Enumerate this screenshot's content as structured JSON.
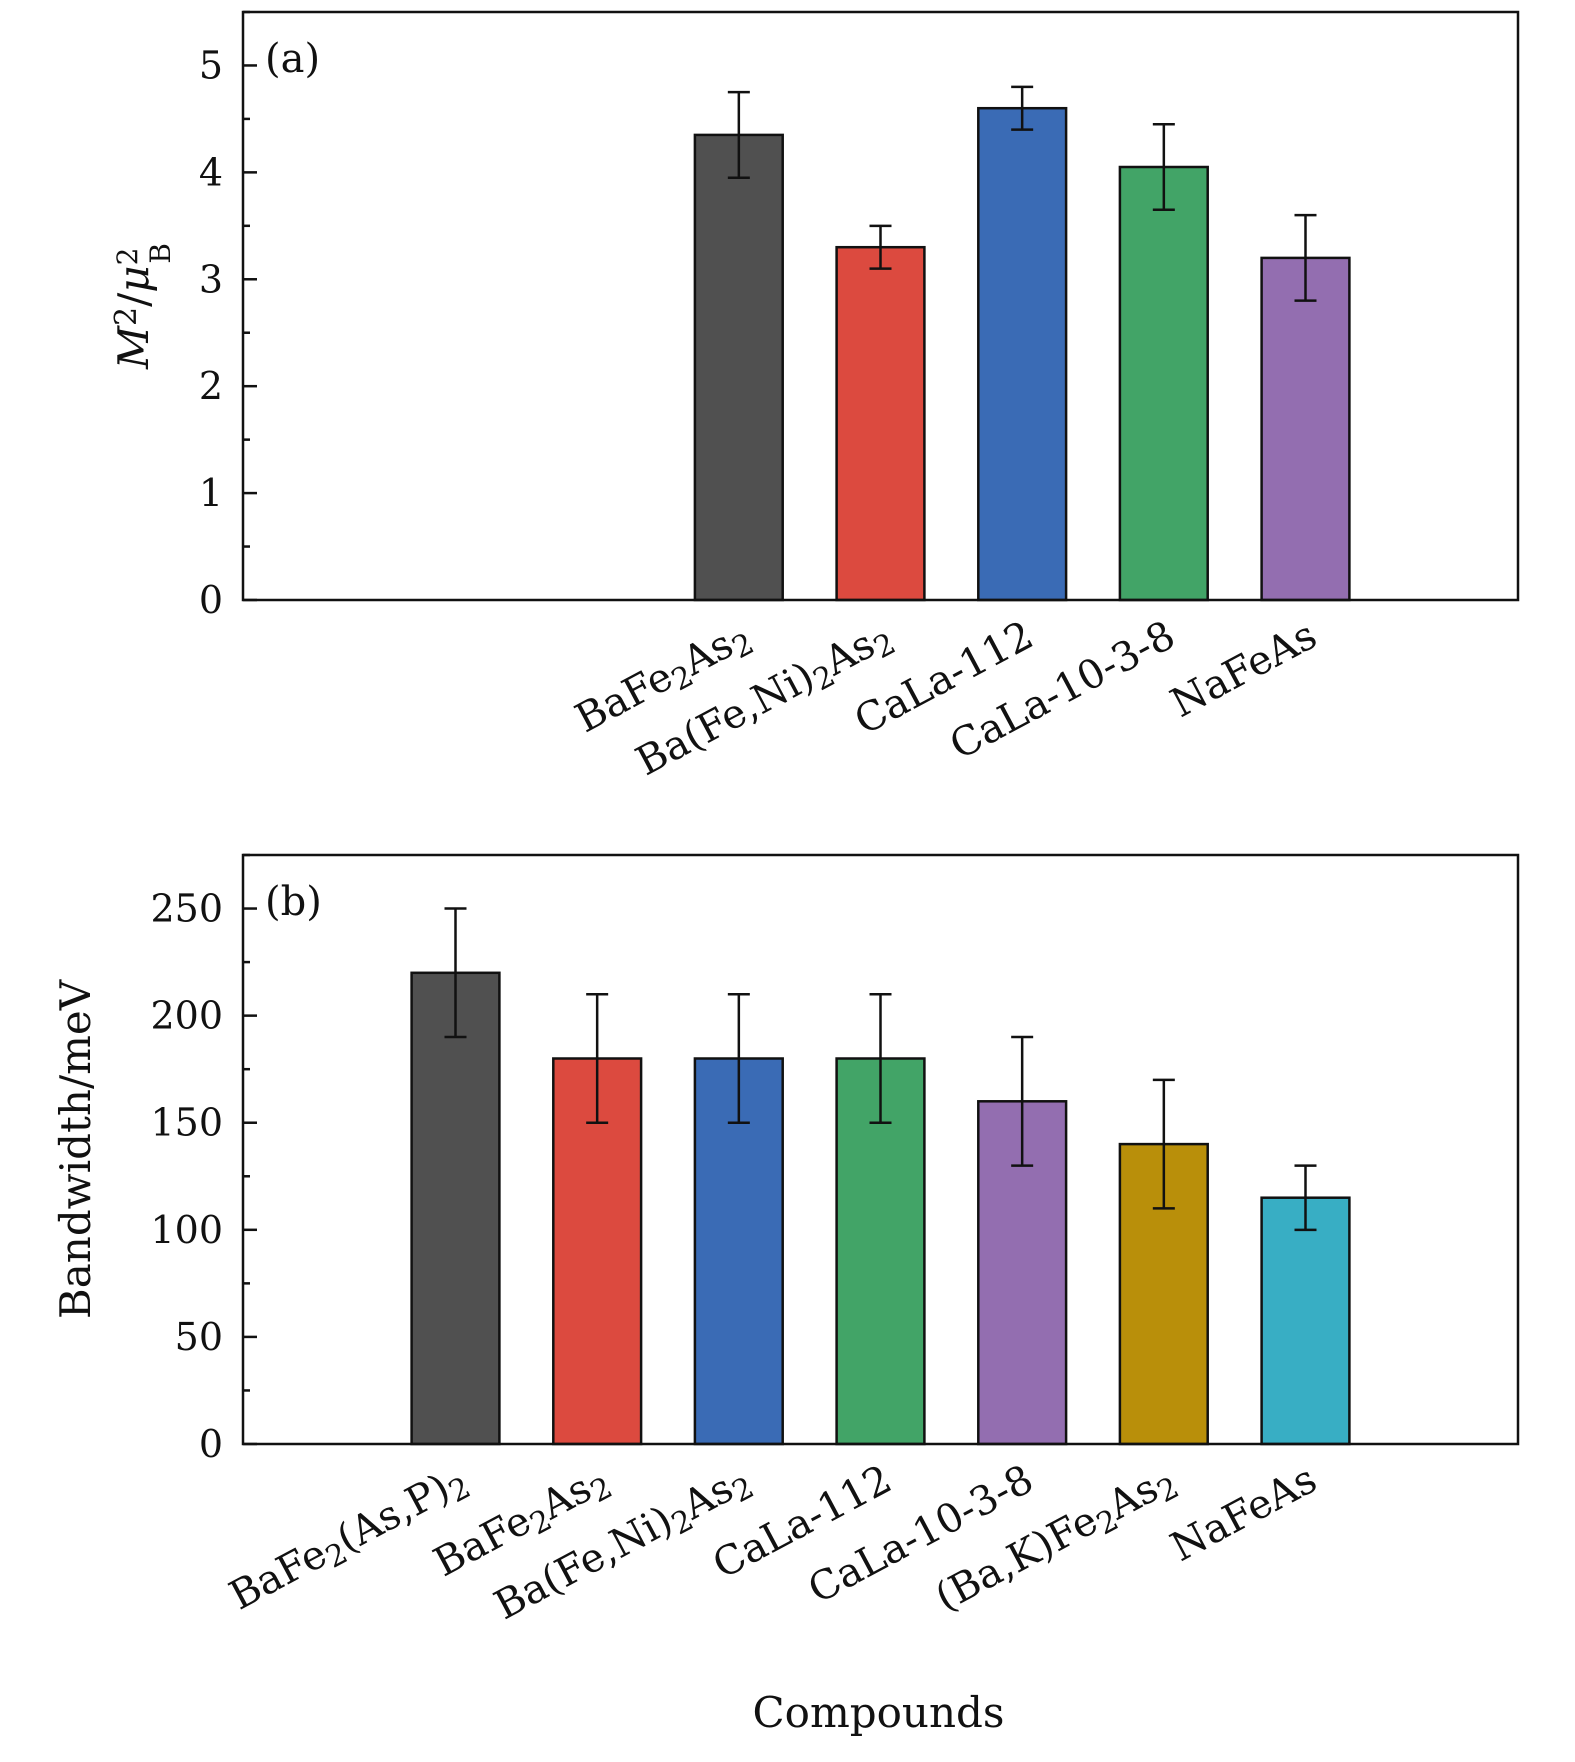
{
  "chart_data": [
    {
      "type": "bar",
      "panel_label": "(a)",
      "ylabel": {
        "base": "M",
        "sup": "2",
        "slash": "/",
        "mu": "μ",
        "mu_sup": "2",
        "mu_sub": "B"
      },
      "xlabel": "",
      "ylim": [
        0,
        5.5
      ],
      "yticks": [
        0,
        1,
        2,
        3,
        4,
        5
      ],
      "categories": [
        {
          "id": "a-bafe2as2",
          "parts": [
            [
              "BaFe",
              ""
            ],
            [
              "2",
              "sub"
            ],
            [
              "As",
              ""
            ],
            [
              "2",
              "sub"
            ]
          ]
        },
        {
          "id": "a-bafeni2as2",
          "parts": [
            [
              "Ba(Fe,Ni)",
              ""
            ],
            [
              "2",
              "sub"
            ],
            [
              "As",
              ""
            ],
            [
              "2",
              "sub"
            ]
          ]
        },
        {
          "id": "a-cala112",
          "parts": [
            [
              "CaLa-112",
              ""
            ]
          ]
        },
        {
          "id": "a-cala1038",
          "parts": [
            [
              "CaLa-10-3-8",
              ""
            ]
          ]
        },
        {
          "id": "a-nafeas",
          "parts": [
            [
              "NaFeAs",
              ""
            ]
          ]
        }
      ],
      "values": [
        4.35,
        3.3,
        4.6,
        4.05,
        3.2
      ],
      "errors": [
        0.4,
        0.2,
        0.2,
        0.4,
        0.4
      ],
      "colors": [
        "#505050",
        "#dc4a3f",
        "#3a6bb5",
        "#42a467",
        "#936eb0"
      ]
    },
    {
      "type": "bar",
      "panel_label": "(b)",
      "ylabel": "Bandwidth/meV",
      "xlabel": "Compounds",
      "ylim": [
        0,
        275
      ],
      "yticks": [
        0,
        50,
        100,
        150,
        200,
        250
      ],
      "categories": [
        {
          "id": "b-bafe2asp2",
          "parts": [
            [
              "BaFe",
              ""
            ],
            [
              "2",
              "sub"
            ],
            [
              "(As,P)",
              ""
            ],
            [
              "2",
              "sub"
            ]
          ]
        },
        {
          "id": "b-bafe2as2",
          "parts": [
            [
              "BaFe",
              ""
            ],
            [
              "2",
              "sub"
            ],
            [
              "As",
              ""
            ],
            [
              "2",
              "sub"
            ]
          ]
        },
        {
          "id": "b-bafeni2as2",
          "parts": [
            [
              "Ba(Fe,Ni)",
              ""
            ],
            [
              "2",
              "sub"
            ],
            [
              "As",
              ""
            ],
            [
              "2",
              "sub"
            ]
          ]
        },
        {
          "id": "b-cala112",
          "parts": [
            [
              "CaLa-112",
              ""
            ]
          ]
        },
        {
          "id": "b-cala1038",
          "parts": [
            [
              "CaLa-10-3-8",
              ""
            ]
          ]
        },
        {
          "id": "b-bakfe2as2",
          "parts": [
            [
              "(Ba,K)Fe",
              ""
            ],
            [
              "2",
              "sub"
            ],
            [
              "As",
              ""
            ],
            [
              "2",
              "sub"
            ]
          ]
        },
        {
          "id": "b-nafeas",
          "parts": [
            [
              "NaFeAs",
              ""
            ]
          ]
        }
      ],
      "values": [
        220,
        180,
        180,
        180,
        160,
        140,
        115
      ],
      "errors": [
        30,
        30,
        30,
        30,
        30,
        30,
        15
      ],
      "colors": [
        "#505050",
        "#dc4a3f",
        "#3a6bb5",
        "#42a467",
        "#936eb0",
        "#b98f0a",
        "#38aec4"
      ]
    }
  ]
}
